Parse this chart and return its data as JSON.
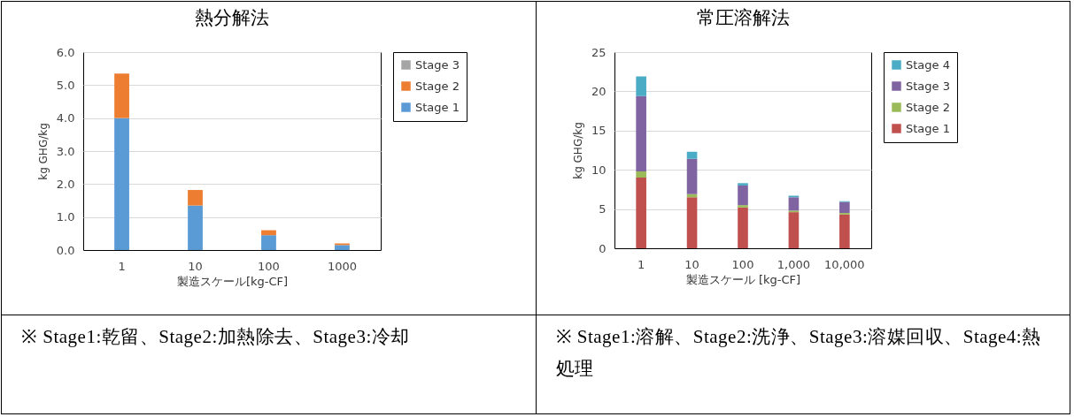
{
  "chart_data": [
    {
      "type": "bar",
      "title": "熱分解法",
      "xlabel": "製造スケール[kg-CF]",
      "ylabel": "kg GHG/kg",
      "categories": [
        "1",
        "10",
        "100",
        "1000"
      ],
      "stacked": true,
      "series": [
        {
          "name": "Stage 1",
          "color": "#5b9bd5",
          "values": [
            4.0,
            1.35,
            0.45,
            0.15
          ]
        },
        {
          "name": "Stage 2",
          "color": "#ed7d31",
          "values": [
            1.35,
            0.47,
            0.15,
            0.05
          ]
        },
        {
          "name": "Stage 3",
          "color": "#a5a5a5",
          "values": [
            0,
            0,
            0,
            0
          ]
        }
      ],
      "ylim": [
        0,
        6
      ],
      "yticks": [
        {
          "value": 0,
          "label": "0.0"
        },
        {
          "value": 1,
          "label": "1.0"
        },
        {
          "value": 2,
          "label": "2.0"
        },
        {
          "value": 3,
          "label": "3.0"
        },
        {
          "value": 4,
          "label": "4.0"
        },
        {
          "value": 5,
          "label": "5.0"
        },
        {
          "value": 6,
          "label": "6.0"
        }
      ],
      "grid": "y",
      "legend": "right",
      "annotations": [
        "※ Stage1:乾留、Stage2:加熱除去、Stage3:冷却"
      ]
    },
    {
      "type": "bar",
      "title": "常圧溶解法",
      "xlabel": "製造スケール [kg-CF]",
      "ylabel": "kg GHG/kg",
      "categories": [
        "1",
        "10",
        "100",
        "1,000",
        "10,000"
      ],
      "stacked": true,
      "series": [
        {
          "name": "Stage 1",
          "color": "#c0504d",
          "values": [
            9.0,
            6.5,
            5.2,
            4.6,
            4.3
          ]
        },
        {
          "name": "Stage 2",
          "color": "#9bbb59",
          "values": [
            0.8,
            0.4,
            0.3,
            0.2,
            0.2
          ]
        },
        {
          "name": "Stage 3",
          "color": "#8064a2",
          "values": [
            9.6,
            4.5,
            2.5,
            1.7,
            1.4
          ]
        },
        {
          "name": "Stage 4",
          "color": "#4bacc6",
          "values": [
            2.5,
            0.9,
            0.3,
            0.2,
            0.1
          ]
        }
      ],
      "ylim": [
        0,
        25
      ],
      "yticks": [
        0,
        5,
        10,
        15,
        20,
        25
      ],
      "grid": "y",
      "legend": "right",
      "annotations": [
        "※ Stage1:溶解、Stage2:洗浄、Stage3:溶媒回収、Stage4:熱処理"
      ]
    }
  ]
}
